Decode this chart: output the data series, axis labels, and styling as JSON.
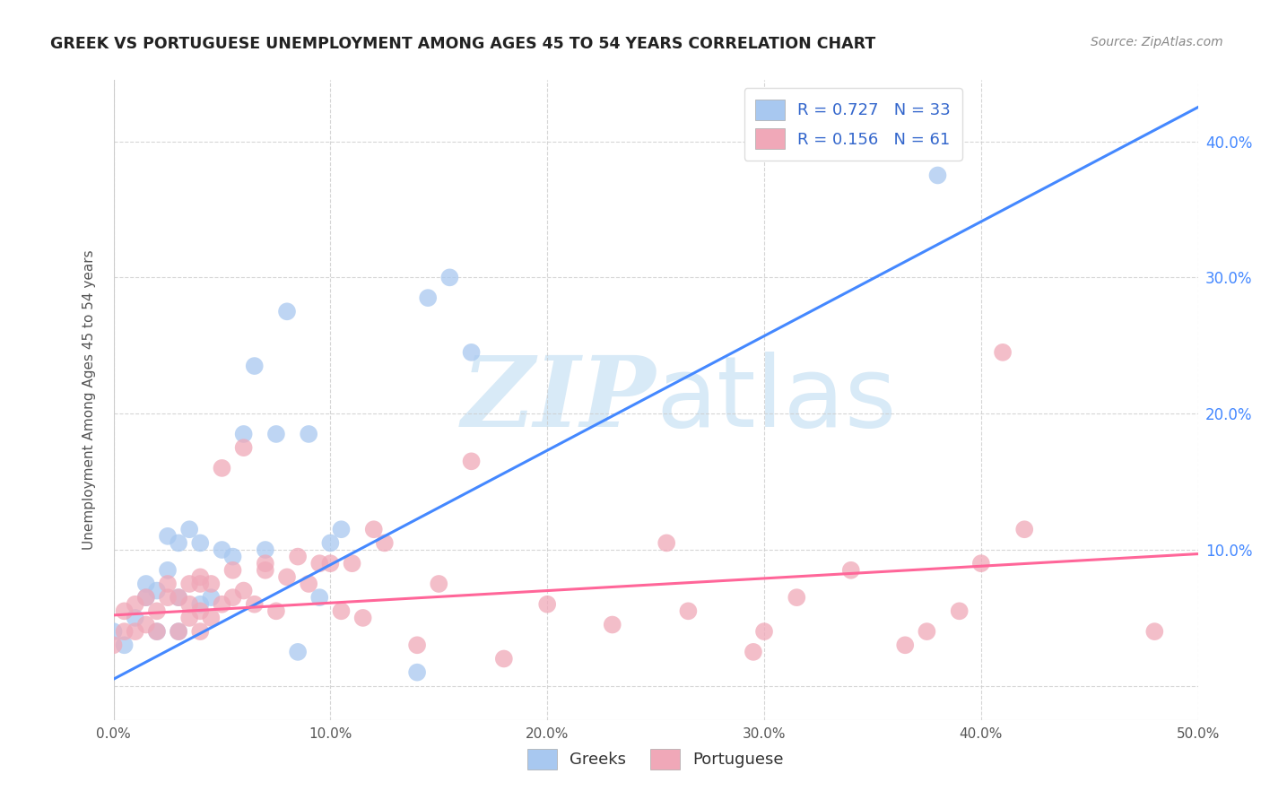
{
  "title": "GREEK VS PORTUGUESE UNEMPLOYMENT AMONG AGES 45 TO 54 YEARS CORRELATION CHART",
  "source": "Source: ZipAtlas.com",
  "ylabel": "Unemployment Among Ages 45 to 54 years",
  "xlim": [
    0.0,
    0.5
  ],
  "ylim": [
    -0.025,
    0.445
  ],
  "xticks": [
    0.0,
    0.1,
    0.2,
    0.3,
    0.4,
    0.5
  ],
  "yticks": [
    0.0,
    0.1,
    0.2,
    0.3,
    0.4
  ],
  "xticklabels": [
    "0.0%",
    "10.0%",
    "20.0%",
    "30.0%",
    "40.0%",
    "50.0%"
  ],
  "right_yticklabels": [
    "",
    "10.0%",
    "20.0%",
    "30.0%",
    "40.0%"
  ],
  "background_color": "#ffffff",
  "grid_color": "#cccccc",
  "watermark_zip": "ZIP",
  "watermark_atlas": "atlas",
  "watermark_color": "#d8eaf7",
  "greek_color": "#a8c8f0",
  "portuguese_color": "#f0a8b8",
  "greek_edge_color": "#88aadd",
  "portuguese_edge_color": "#dd88aa",
  "greek_line_color": "#4488ff",
  "portuguese_line_color": "#ff6699",
  "greek_R": 0.727,
  "greek_N": 33,
  "portuguese_R": 0.156,
  "portuguese_N": 61,
  "greek_scatter_x": [
    0.0,
    0.005,
    0.01,
    0.015,
    0.015,
    0.02,
    0.02,
    0.025,
    0.025,
    0.03,
    0.03,
    0.03,
    0.035,
    0.04,
    0.04,
    0.045,
    0.05,
    0.055,
    0.06,
    0.065,
    0.07,
    0.075,
    0.08,
    0.085,
    0.09,
    0.095,
    0.1,
    0.105,
    0.14,
    0.145,
    0.155,
    0.165,
    0.38
  ],
  "greek_scatter_y": [
    0.04,
    0.03,
    0.05,
    0.065,
    0.075,
    0.04,
    0.07,
    0.085,
    0.11,
    0.04,
    0.065,
    0.105,
    0.115,
    0.06,
    0.105,
    0.065,
    0.1,
    0.095,
    0.185,
    0.235,
    0.1,
    0.185,
    0.275,
    0.025,
    0.185,
    0.065,
    0.105,
    0.115,
    0.01,
    0.285,
    0.3,
    0.245,
    0.375
  ],
  "portuguese_scatter_x": [
    0.0,
    0.005,
    0.005,
    0.01,
    0.01,
    0.015,
    0.015,
    0.02,
    0.02,
    0.025,
    0.025,
    0.03,
    0.03,
    0.035,
    0.035,
    0.035,
    0.04,
    0.04,
    0.04,
    0.04,
    0.045,
    0.045,
    0.05,
    0.05,
    0.055,
    0.055,
    0.06,
    0.06,
    0.065,
    0.07,
    0.07,
    0.075,
    0.08,
    0.085,
    0.09,
    0.095,
    0.1,
    0.105,
    0.11,
    0.115,
    0.12,
    0.125,
    0.14,
    0.15,
    0.165,
    0.18,
    0.2,
    0.23,
    0.255,
    0.265,
    0.295,
    0.3,
    0.315,
    0.34,
    0.365,
    0.375,
    0.39,
    0.4,
    0.41,
    0.42,
    0.48
  ],
  "portuguese_scatter_y": [
    0.03,
    0.04,
    0.055,
    0.04,
    0.06,
    0.045,
    0.065,
    0.04,
    0.055,
    0.065,
    0.075,
    0.04,
    0.065,
    0.05,
    0.06,
    0.075,
    0.04,
    0.055,
    0.075,
    0.08,
    0.05,
    0.075,
    0.06,
    0.16,
    0.065,
    0.085,
    0.07,
    0.175,
    0.06,
    0.085,
    0.09,
    0.055,
    0.08,
    0.095,
    0.075,
    0.09,
    0.09,
    0.055,
    0.09,
    0.05,
    0.115,
    0.105,
    0.03,
    0.075,
    0.165,
    0.02,
    0.06,
    0.045,
    0.105,
    0.055,
    0.025,
    0.04,
    0.065,
    0.085,
    0.03,
    0.04,
    0.055,
    0.09,
    0.245,
    0.115,
    0.04
  ],
  "greek_trend_x": [
    0.0,
    0.5
  ],
  "greek_trend_y": [
    0.005,
    0.425
  ],
  "portuguese_trend_x": [
    0.0,
    0.5
  ],
  "portuguese_trend_y": [
    0.052,
    0.097
  ]
}
